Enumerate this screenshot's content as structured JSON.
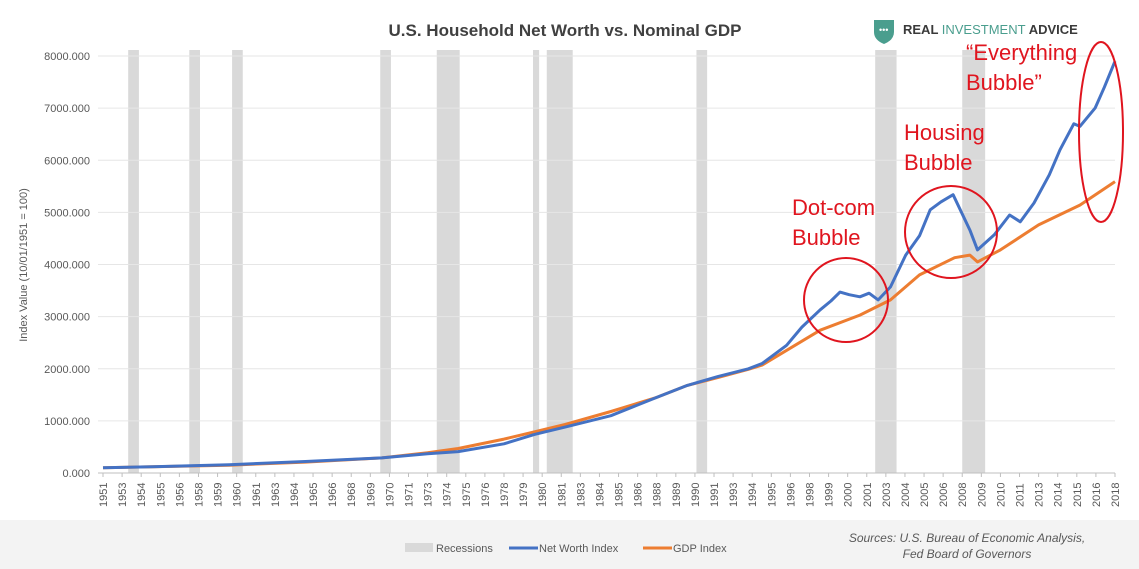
{
  "logo": {
    "part1": "REAL ",
    "part2": "INVESTMENT",
    "part3": " ADVICE",
    "color": "#4a9e8e"
  },
  "chart_data": {
    "type": "line",
    "title": "U.S. Household Net Worth vs. Nominal GDP",
    "xlabel": "",
    "ylabel": "Index Value (10/01/1951 = 100)",
    "ylim": [
      0,
      8000
    ],
    "yticks": [
      "0.000",
      "1000.000",
      "2000.000",
      "3000.000",
      "4000.000",
      "5000.000",
      "6000.000",
      "7000.000",
      "8000.000"
    ],
    "xlim": [
      1951.75,
      2018
    ],
    "xtick_labels": [
      "1951",
      "1953",
      "1954",
      "1955",
      "1956",
      "1958",
      "1959",
      "1960",
      "1961",
      "1963",
      "1964",
      "1965",
      "1966",
      "1968",
      "1969",
      "1970",
      "1971",
      "1973",
      "1974",
      "1975",
      "1976",
      "1978",
      "1979",
      "1980",
      "1981",
      "1983",
      "1984",
      "1985",
      "1986",
      "1988",
      "1989",
      "1990",
      "1991",
      "1993",
      "1994",
      "1995",
      "1996",
      "1998",
      "1999",
      "2000",
      "2001",
      "2003",
      "2004",
      "2005",
      "2006",
      "2008",
      "2009",
      "2010",
      "2011",
      "2013",
      "2014",
      "2015",
      "2016",
      "2018"
    ],
    "grid": true,
    "legend": "bottom",
    "legend_entries": [
      "Recessions",
      "Net Worth Index",
      "GDP Index"
    ],
    "recessions": [
      [
        1953.4,
        1954.1
      ],
      [
        1957.4,
        1958.1
      ],
      [
        1960.2,
        1960.9
      ],
      [
        1969.9,
        1970.6
      ],
      [
        1973.6,
        1975.1
      ],
      [
        1979.9,
        1980.3
      ],
      [
        1980.8,
        1982.5
      ],
      [
        1990.6,
        1991.3
      ],
      [
        2002.3,
        2003.7
      ],
      [
        2008.0,
        2009.5
      ]
    ],
    "series": [
      {
        "name": "Net Worth Index",
        "color": "#4472c4",
        "points": [
          [
            1951.75,
            100
          ],
          [
            1955,
            120
          ],
          [
            1960,
            160
          ],
          [
            1965,
            220
          ],
          [
            1970,
            290
          ],
          [
            1973,
            370
          ],
          [
            1975,
            410
          ],
          [
            1978,
            560
          ],
          [
            1980,
            740
          ],
          [
            1982,
            880
          ],
          [
            1985,
            1100
          ],
          [
            1988,
            1450
          ],
          [
            1990,
            1680
          ],
          [
            1992,
            1850
          ],
          [
            1994,
            2000
          ],
          [
            1994.9,
            2100
          ],
          [
            1996.5,
            2450
          ],
          [
            1997.5,
            2800
          ],
          [
            1998.7,
            3130
          ],
          [
            1999.4,
            3300
          ],
          [
            2000,
            3470
          ],
          [
            2000.6,
            3420
          ],
          [
            2001.3,
            3380
          ],
          [
            2001.9,
            3450
          ],
          [
            2002.5,
            3320
          ],
          [
            2003.3,
            3570
          ],
          [
            2004.3,
            4180
          ],
          [
            2005.2,
            4550
          ],
          [
            2005.9,
            5050
          ],
          [
            2006.6,
            5200
          ],
          [
            2007.4,
            5340
          ],
          [
            2008.5,
            4660
          ],
          [
            2009,
            4280
          ],
          [
            2010.1,
            4570
          ],
          [
            2011.1,
            4950
          ],
          [
            2011.8,
            4820
          ],
          [
            2012.7,
            5180
          ],
          [
            2013.7,
            5720
          ],
          [
            2014.4,
            6200
          ],
          [
            2015.3,
            6700
          ],
          [
            2015.7,
            6650
          ],
          [
            2016.7,
            7000
          ],
          [
            2017.3,
            7400
          ],
          [
            2018,
            7900
          ]
        ]
      },
      {
        "name": "GDP Index",
        "color": "#ed7d31",
        "points": [
          [
            1951.75,
            100
          ],
          [
            1955,
            120
          ],
          [
            1960,
            150
          ],
          [
            1965,
            210
          ],
          [
            1970,
            290
          ],
          [
            1973,
            390
          ],
          [
            1975,
            470
          ],
          [
            1978,
            650
          ],
          [
            1980,
            790
          ],
          [
            1982,
            930
          ],
          [
            1985,
            1180
          ],
          [
            1988,
            1450
          ],
          [
            1990,
            1680
          ],
          [
            1992,
            1830
          ],
          [
            1994,
            1990
          ],
          [
            1994.9,
            2070
          ],
          [
            1998.7,
            2740
          ],
          [
            2001.3,
            3030
          ],
          [
            2003.3,
            3320
          ],
          [
            2005.2,
            3800
          ],
          [
            2007.5,
            4130
          ],
          [
            2008.5,
            4180
          ],
          [
            2009,
            4050
          ],
          [
            2010.5,
            4280
          ],
          [
            2013,
            4760
          ],
          [
            2015.7,
            5140
          ],
          [
            2018,
            5590
          ]
        ]
      }
    ],
    "annotations": [
      {
        "label1": "Dot-com",
        "label2": "Bubble"
      },
      {
        "label1": "Housing",
        "label2": "Bubble"
      },
      {
        "label1": "“Everything",
        "label2": "Bubble”"
      }
    ]
  },
  "sources": {
    "line1": "Sources: U.S. Bureau of Economic Analysis,",
    "line2": "Fed Board of Governors"
  }
}
